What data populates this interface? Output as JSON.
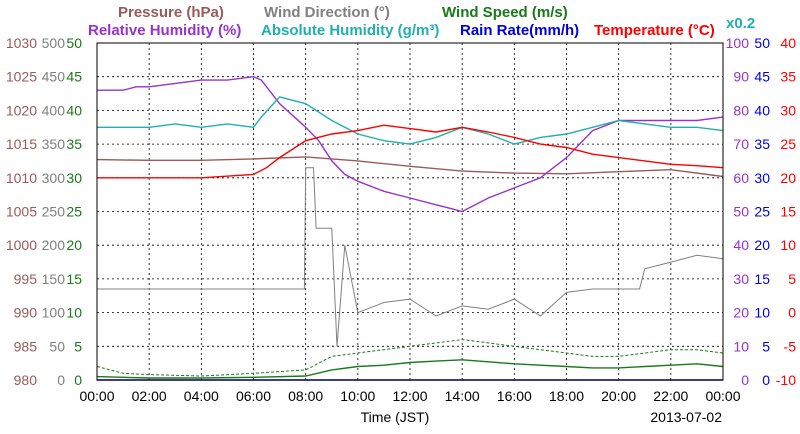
{
  "chart_data": {
    "type": "line",
    "legend": {
      "pressure": "Pressure (hPa)",
      "wind_direction": "Wind Direction (°)",
      "wind_speed": "Wind Speed (m/s)",
      "relative_humidity": "Relative Humidity (%)",
      "absolute_humidity": "Absolute Humidity (g/m³)",
      "rain_rate": "Rain Rate(mm/h)",
      "temperature": "Temperature (°C)",
      "abs_humidity_scale_note": "x0.2"
    },
    "xlabel": "Time (JST)",
    "date": "2013-07-02",
    "grid": true,
    "x_ticks": [
      "00:00",
      "02:00",
      "04:00",
      "06:00",
      "08:00",
      "10:00",
      "12:00",
      "14:00",
      "16:00",
      "18:00",
      "20:00",
      "22:00",
      "00:00"
    ],
    "axes": {
      "pressure": {
        "range": [
          980,
          1030
        ],
        "ticks": [
          "1030",
          "1025",
          "1020",
          "1015",
          "1010",
          "1005",
          "1000",
          "995",
          "990",
          "985",
          "980"
        ]
      },
      "wind_direction": {
        "range": [
          0,
          500
        ],
        "ticks": [
          "500",
          "450",
          "400",
          "350",
          "300",
          "250",
          "200",
          "150",
          "100",
          "50",
          "0"
        ]
      },
      "wind_speed": {
        "range": [
          0,
          50
        ],
        "ticks": [
          "50",
          "45",
          "40",
          "35",
          "30",
          "25",
          "20",
          "15",
          "10",
          "5",
          "0"
        ]
      },
      "humidity": {
        "range": [
          0,
          100
        ],
        "ticks": [
          "100",
          "90",
          "80",
          "70",
          "60",
          "50",
          "40",
          "30",
          "20",
          "10",
          "0"
        ]
      },
      "rain_rate": {
        "range": [
          0,
          50
        ],
        "ticks": [
          "50",
          "45",
          "40",
          "35",
          "30",
          "25",
          "20",
          "15",
          "10",
          "5",
          "0"
        ]
      },
      "temperature": {
        "range": [
          -10,
          40
        ],
        "ticks": [
          "40",
          "35",
          "30",
          "25",
          "20",
          "15",
          "10",
          "5",
          "0",
          "-5",
          "-10"
        ]
      }
    },
    "series": [
      {
        "name": "Pressure (hPa)",
        "axis": "pressure",
        "color": "#9a5a5a",
        "x": [
          0,
          2,
          4,
          6,
          8,
          10,
          12,
          14,
          16,
          18,
          20,
          22,
          24
        ],
        "y": [
          1012.7,
          1012.6,
          1012.6,
          1012.8,
          1013.1,
          1012.5,
          1011.7,
          1011.0,
          1010.7,
          1010.6,
          1010.9,
          1011.2,
          1010.2
        ]
      },
      {
        "name": "Wind Direction (°)",
        "axis": "wind_direction",
        "color": "#808080",
        "x": [
          0,
          2,
          4,
          6,
          7.95,
          8.0,
          8.3,
          8.4,
          9.0,
          9.2,
          9.5,
          10,
          11,
          12,
          13,
          14,
          15,
          16,
          17,
          18,
          19,
          20,
          20.8,
          21,
          22,
          23,
          24
        ],
        "y": [
          135,
          135,
          135,
          135,
          135,
          315,
          315,
          225,
          225,
          50,
          200,
          100,
          115,
          120,
          95,
          110,
          105,
          120,
          95,
          130,
          135,
          135,
          135,
          165,
          175,
          185,
          180
        ]
      },
      {
        "name": "Wind Speed (m/s)",
        "axis": "wind_speed",
        "color": "#1a7a1a",
        "x": [
          0,
          2,
          4,
          6,
          8,
          9,
          10,
          11,
          12,
          13,
          14,
          15,
          16,
          17,
          18,
          19,
          20,
          21,
          22,
          23,
          24
        ],
        "y": [
          0.5,
          0.3,
          0.3,
          0.4,
          0.6,
          1.5,
          2.0,
          2.2,
          2.6,
          2.8,
          3.0,
          2.7,
          2.4,
          2.2,
          2.0,
          1.8,
          1.8,
          2.0,
          2.2,
          2.4,
          2.0
        ]
      },
      {
        "name": "Wind Speed gust (m/s)",
        "axis": "wind_speed",
        "color": "#1a7a1a",
        "x": [
          0,
          1,
          2,
          4,
          6,
          8,
          9,
          10,
          11,
          12,
          13,
          14,
          15,
          16,
          17,
          18,
          19,
          20,
          21,
          22,
          23,
          24
        ],
        "y": [
          2.0,
          1.0,
          0.8,
          0.6,
          1.0,
          1.5,
          3.5,
          4.0,
          4.5,
          5.0,
          5.5,
          6.0,
          5.5,
          5.0,
          4.5,
          4.0,
          3.5,
          3.5,
          4.0,
          4.5,
          4.5,
          4.0
        ]
      },
      {
        "name": "Relative Humidity (%)",
        "axis": "humidity",
        "color": "#9932cc",
        "x": [
          0,
          1,
          1.5,
          2,
          3,
          4,
          5,
          6,
          6.3,
          7,
          8,
          8.5,
          9,
          9.5,
          10,
          11,
          12,
          13,
          13.5,
          14,
          15,
          16,
          17,
          18,
          19,
          20,
          21,
          22,
          23,
          24
        ],
        "y": [
          86,
          86,
          87,
          87,
          88,
          89,
          89,
          90,
          89,
          82,
          75,
          71,
          65,
          61,
          59,
          56,
          54,
          52,
          51,
          50,
          54,
          57,
          60,
          66,
          74,
          77,
          77,
          77,
          77,
          78
        ]
      },
      {
        "name": "Absolute Humidity (g/m³) x0.2",
        "axis": "humidity",
        "color": "#20b0b0",
        "x": [
          0,
          1,
          2,
          3,
          4,
          5,
          6,
          6.3,
          7,
          8,
          9,
          10,
          11,
          12,
          13,
          14,
          15,
          16,
          17,
          18,
          19,
          20,
          21,
          22,
          23,
          24
        ],
        "y": [
          75,
          75,
          75,
          76,
          75,
          76,
          75,
          78,
          84,
          82,
          77,
          73,
          71,
          70,
          72,
          75,
          73,
          70,
          72,
          73,
          75,
          77,
          76,
          75,
          75,
          74
        ]
      },
      {
        "name": "Rain Rate(mm/h)",
        "axis": "rain_rate",
        "color": "#0000dd",
        "x": [
          0,
          24
        ],
        "y": [
          0,
          0
        ]
      },
      {
        "name": "Temperature (°C)",
        "axis": "temperature",
        "color": "#ff0000",
        "x": [
          0,
          2,
          4,
          6,
          6.5,
          7,
          8,
          9,
          10,
          11,
          12,
          13,
          14,
          15,
          16,
          17,
          18,
          19,
          20,
          21,
          22,
          23,
          24
        ],
        "y": [
          20.0,
          20.0,
          20.0,
          20.5,
          21.5,
          23.0,
          25.5,
          26.5,
          27.0,
          27.8,
          27.3,
          26.8,
          27.5,
          26.8,
          26.0,
          25.0,
          24.5,
          23.5,
          23.0,
          22.5,
          22.0,
          21.8,
          21.5
        ]
      }
    ]
  }
}
